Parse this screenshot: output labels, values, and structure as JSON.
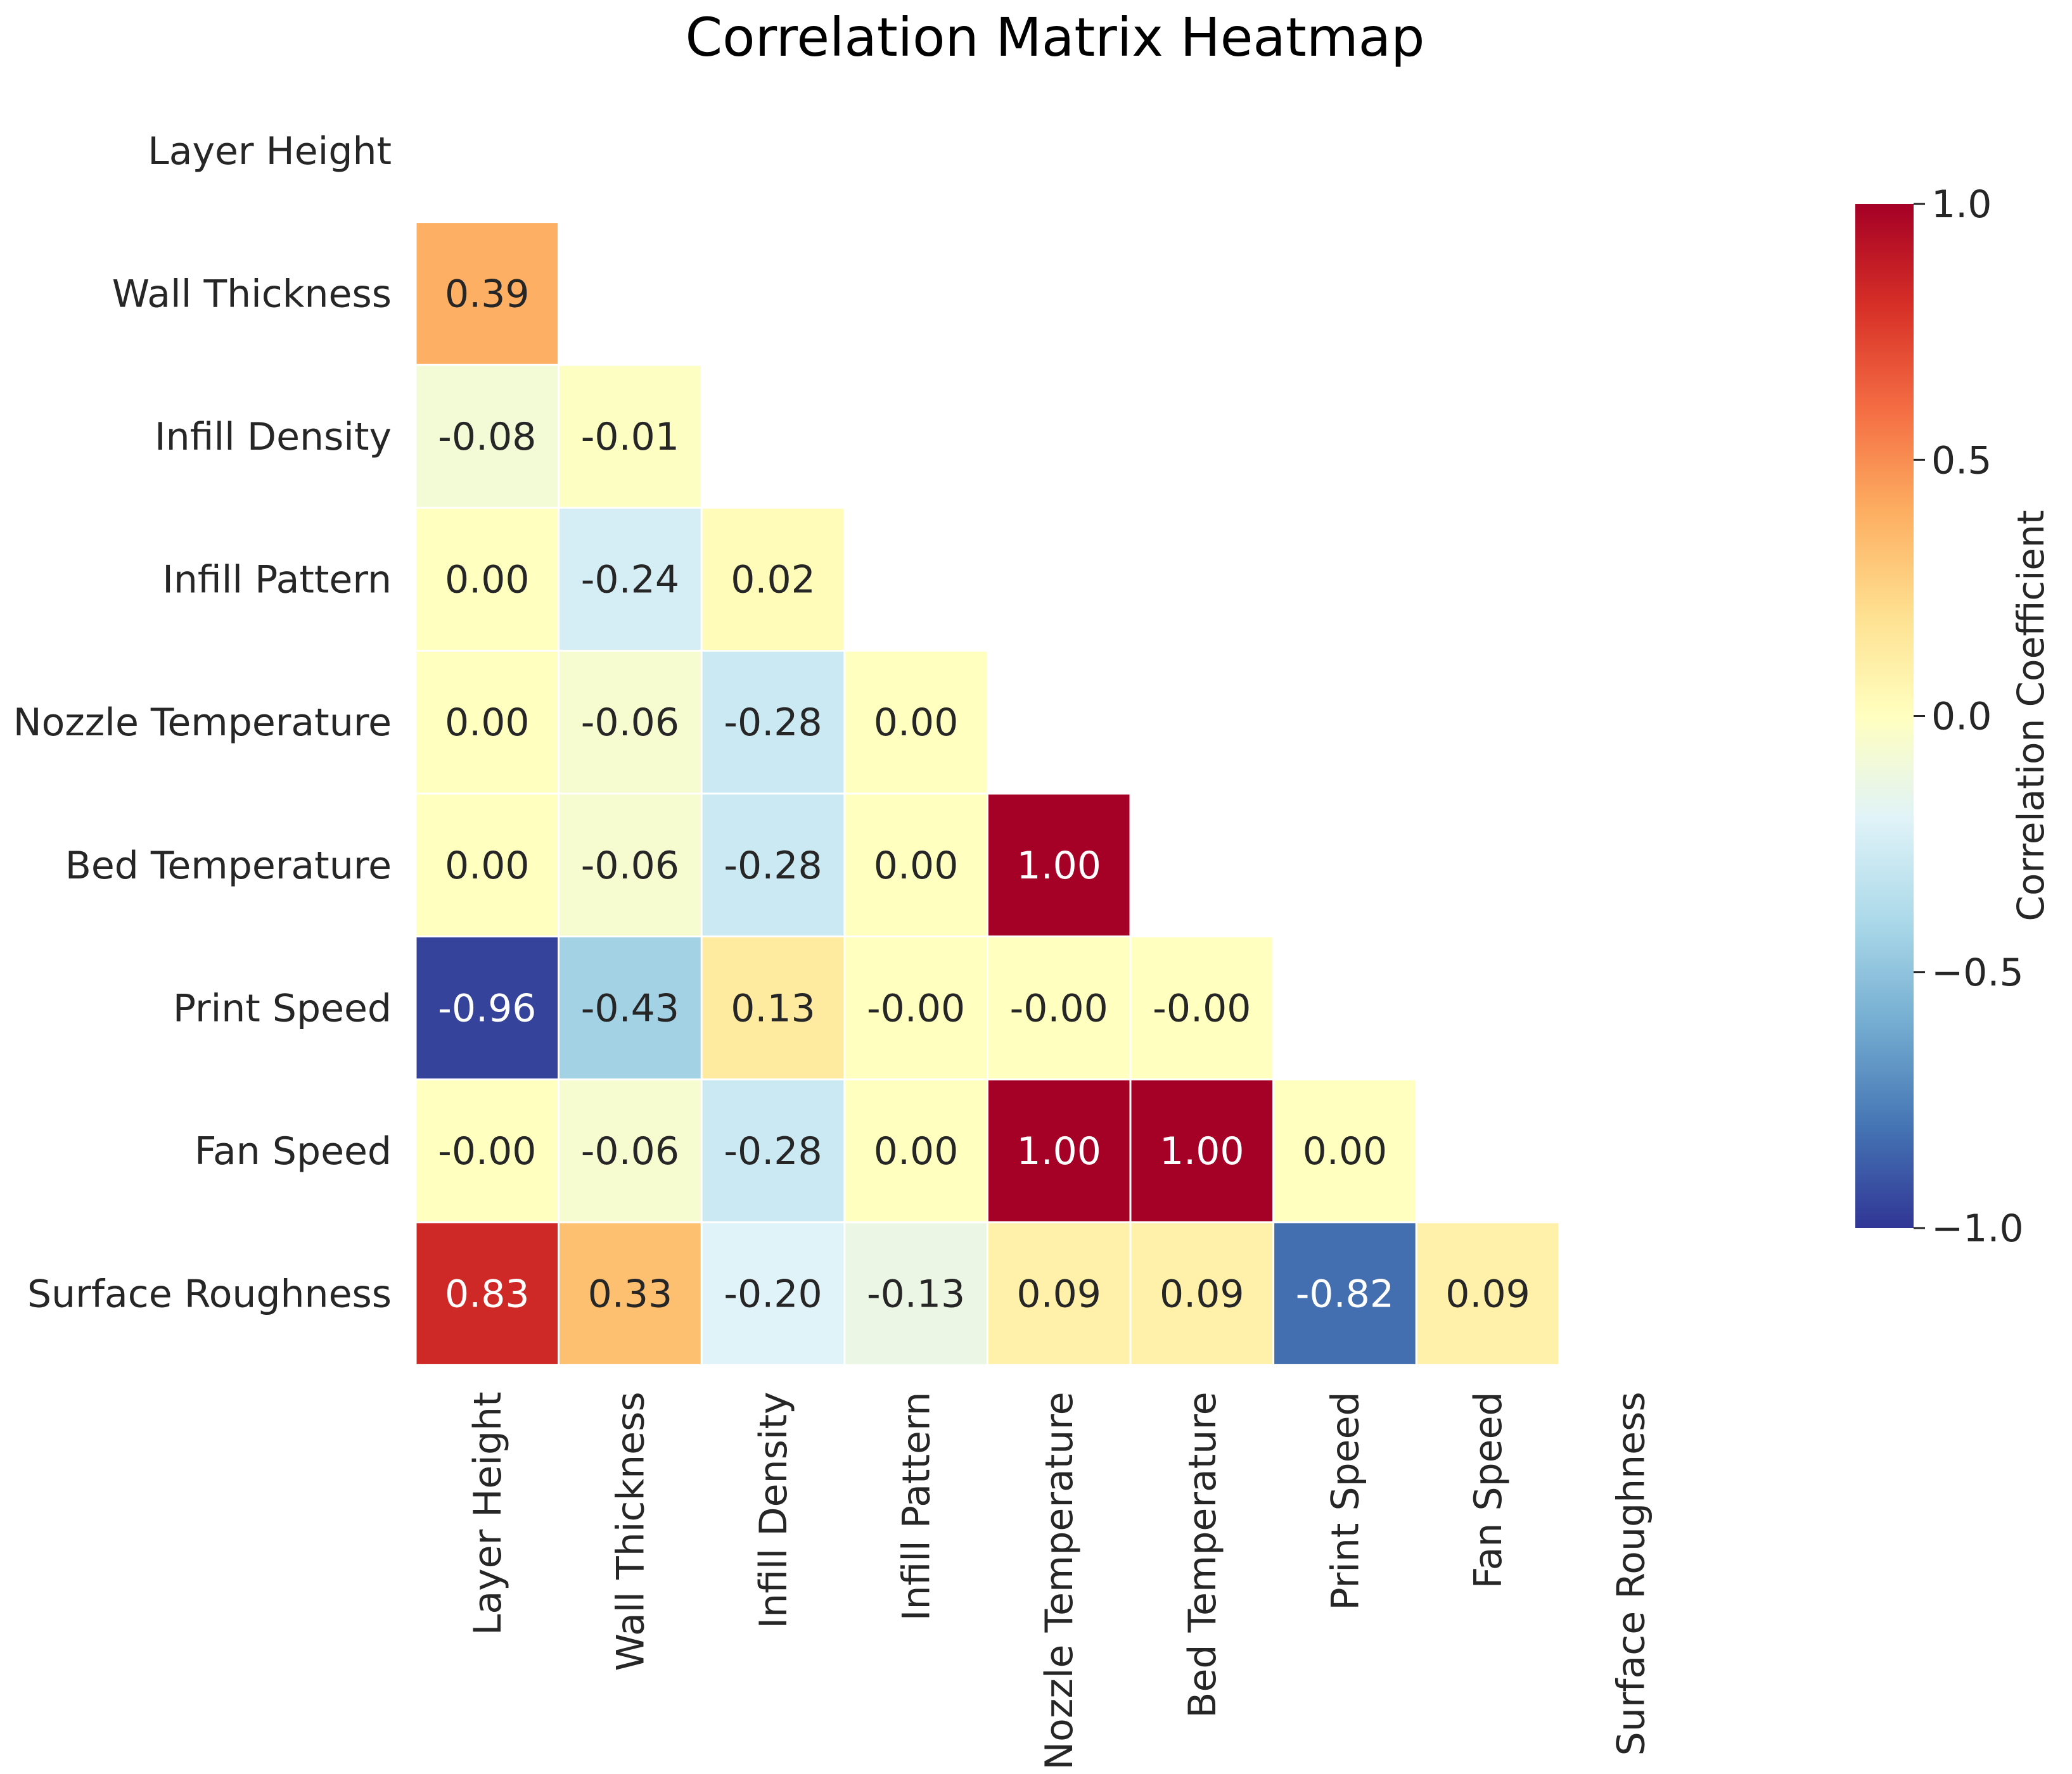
{
  "chart_data": {
    "type": "heatmap",
    "title": "Correlation Matrix Heatmap",
    "variables": [
      "Layer Height",
      "Wall Thickness",
      "Infill Density",
      "Infill Pattern",
      "Nozzle Temperature",
      "Bed Temperature",
      "Print Speed",
      "Fan Speed",
      "Surface Roughness"
    ],
    "mask": "upper-triangle-including-diagonal",
    "matrix": [
      [
        null,
        null,
        null,
        null,
        null,
        null,
        null,
        null,
        null
      ],
      [
        0.39,
        null,
        null,
        null,
        null,
        null,
        null,
        null,
        null
      ],
      [
        -0.08,
        -0.01,
        null,
        null,
        null,
        null,
        null,
        null,
        null
      ],
      [
        0.0,
        -0.24,
        0.02,
        null,
        null,
        null,
        null,
        null,
        null
      ],
      [
        0.0,
        -0.06,
        -0.28,
        0.0,
        null,
        null,
        null,
        null,
        null
      ],
      [
        0.0,
        -0.06,
        -0.28,
        0.0,
        1.0,
        null,
        null,
        null,
        null
      ],
      [
        -0.96,
        -0.43,
        0.13,
        -0.0001,
        -0.0001,
        -0.0001,
        null,
        null,
        null
      ],
      [
        -0.0001,
        -0.06,
        -0.28,
        0.0,
        1.0,
        1.0,
        0.0,
        null,
        null
      ],
      [
        0.83,
        0.33,
        -0.2,
        -0.13,
        0.09,
        0.09,
        -0.82,
        0.09,
        null
      ]
    ],
    "labels": [
      [
        "",
        "",
        "",
        "",
        "",
        "",
        "",
        "",
        ""
      ],
      [
        "0.39",
        "",
        "",
        "",
        "",
        "",
        "",
        "",
        ""
      ],
      [
        "-0.08",
        "-0.01",
        "",
        "",
        "",
        "",
        "",
        "",
        ""
      ],
      [
        "0.00",
        "-0.24",
        "0.02",
        "",
        "",
        "",
        "",
        "",
        ""
      ],
      [
        "0.00",
        "-0.06",
        "-0.28",
        "0.00",
        "",
        "",
        "",
        "",
        ""
      ],
      [
        "0.00",
        "-0.06",
        "-0.28",
        "0.00",
        "1.00",
        "",
        "",
        "",
        ""
      ],
      [
        "-0.96",
        "-0.43",
        "0.13",
        "-0.00",
        "-0.00",
        "-0.00",
        "",
        "",
        ""
      ],
      [
        "-0.00",
        "-0.06",
        "-0.28",
        "0.00",
        "1.00",
        "1.00",
        "0.00",
        "",
        ""
      ],
      [
        "0.83",
        "0.33",
        "-0.20",
        "-0.13",
        "0.09",
        "0.09",
        "-0.82",
        "0.09",
        ""
      ]
    ],
    "colormap": "RdYlBu_r",
    "vmin": -1.0,
    "vmax": 1.0,
    "colorbar": {
      "label": "Correlation Coefficient",
      "ticks": [
        1.0,
        0.5,
        0.0,
        -0.5,
        -1.0
      ],
      "tick_labels": [
        "1.0",
        "0.5",
        "0.0",
        "−0.5",
        "−1.0"
      ]
    },
    "colormap_stops": [
      "#313695",
      "#4575b4",
      "#74add1",
      "#abd9e9",
      "#e0f3f8",
      "#ffffbf",
      "#fee090",
      "#fdae61",
      "#f46d43",
      "#d73027",
      "#a50026"
    ]
  }
}
